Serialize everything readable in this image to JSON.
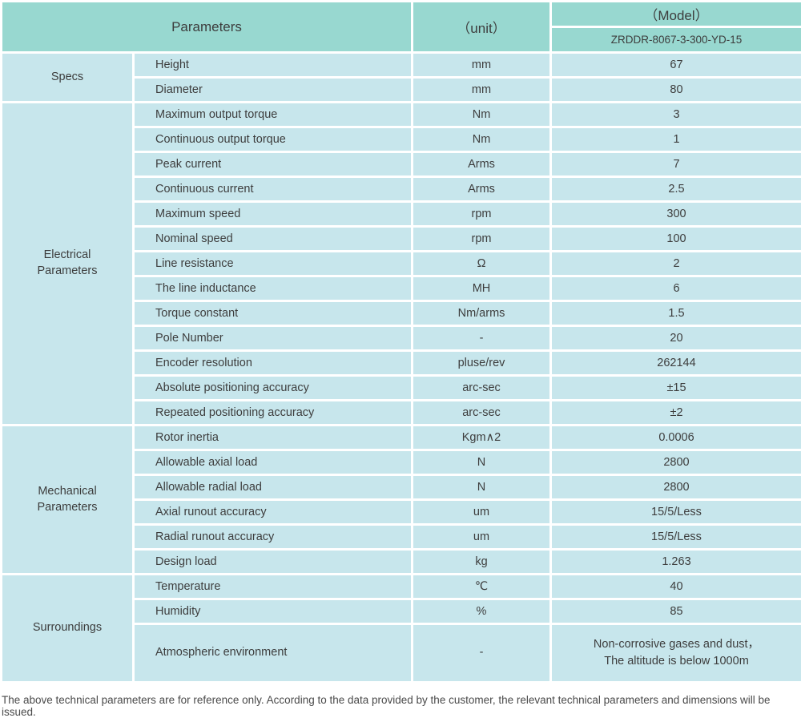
{
  "colors": {
    "header_bg": "#98d8d0",
    "cell_bg": "#c7e6ec",
    "text": "#3d3d3d",
    "line": "#ffffff"
  },
  "table": {
    "header": {
      "parameters_label": "Parameters",
      "unit_label": "（unit）",
      "model_label": "（Model）",
      "model_value": "ZRDDR-8067-3-300-YD-15"
    },
    "sections": [
      {
        "name": "Specs",
        "rows": [
          {
            "parameter": "Height",
            "unit": "mm",
            "value": "67"
          },
          {
            "parameter": "Diameter",
            "unit": "mm",
            "value": "80"
          }
        ]
      },
      {
        "name": "Electrical\nParameters",
        "rows": [
          {
            "parameter": "Maximum output torque",
            "unit": "Nm",
            "value": "3"
          },
          {
            "parameter": "Continuous output torque",
            "unit": "Nm",
            "value": "1"
          },
          {
            "parameter": "Peak current",
            "unit": "Arms",
            "value": "7"
          },
          {
            "parameter": "Continuous current",
            "unit": "Arms",
            "value": "2.5"
          },
          {
            "parameter": "Maximum speed",
            "unit": "rpm",
            "value": "300"
          },
          {
            "parameter": "Nominal speed",
            "unit": "rpm",
            "value": "100"
          },
          {
            "parameter": "Line resistance",
            "unit": "Ω",
            "value": "2"
          },
          {
            "parameter": "The line inductance",
            "unit": "MH",
            "value": "6"
          },
          {
            "parameter": "Torque constant",
            "unit": "Nm/arms",
            "value": "1.5"
          },
          {
            "parameter": "Pole Number",
            "unit": "-",
            "value": "20"
          },
          {
            "parameter": "Encoder resolution",
            "unit": "pluse/rev",
            "value": "262144"
          },
          {
            "parameter": "Absolute positioning accuracy",
            "unit": "arc-sec",
            "value": "±15"
          },
          {
            "parameter": "Repeated positioning accuracy",
            "unit": "arc-sec",
            "value": "±2"
          }
        ]
      },
      {
        "name": "Mechanical\nParameters",
        "rows": [
          {
            "parameter": "Rotor inertia",
            "unit": "Kgm∧2",
            "value": "0.0006"
          },
          {
            "parameter": "Allowable axial load",
            "unit": "N",
            "value": "2800"
          },
          {
            "parameter": "Allowable radial load",
            "unit": "N",
            "value": "2800"
          },
          {
            "parameter": "Axial runout accuracy",
            "unit": "um",
            "value": "15/5/Less"
          },
          {
            "parameter": "Radial runout accuracy",
            "unit": "um",
            "value": "15/5/Less"
          },
          {
            "parameter": "Design load",
            "unit": "kg",
            "value": "1.263"
          }
        ]
      },
      {
        "name": "Surroundings",
        "rows": [
          {
            "parameter": "Temperature",
            "unit": "℃",
            "value": "40"
          },
          {
            "parameter": "Humidity",
            "unit": "%",
            "value": "85"
          },
          {
            "parameter": "Atmospheric environment",
            "unit": "-",
            "value": "Non-corrosive gases and dust，\nThe altitude is below 1000m",
            "tall": true
          }
        ]
      }
    ]
  },
  "footer": {
    "note": "The above technical parameters are for reference only. According to the data provided by the customer, the relevant technical parameters and dimensions will be issued."
  }
}
